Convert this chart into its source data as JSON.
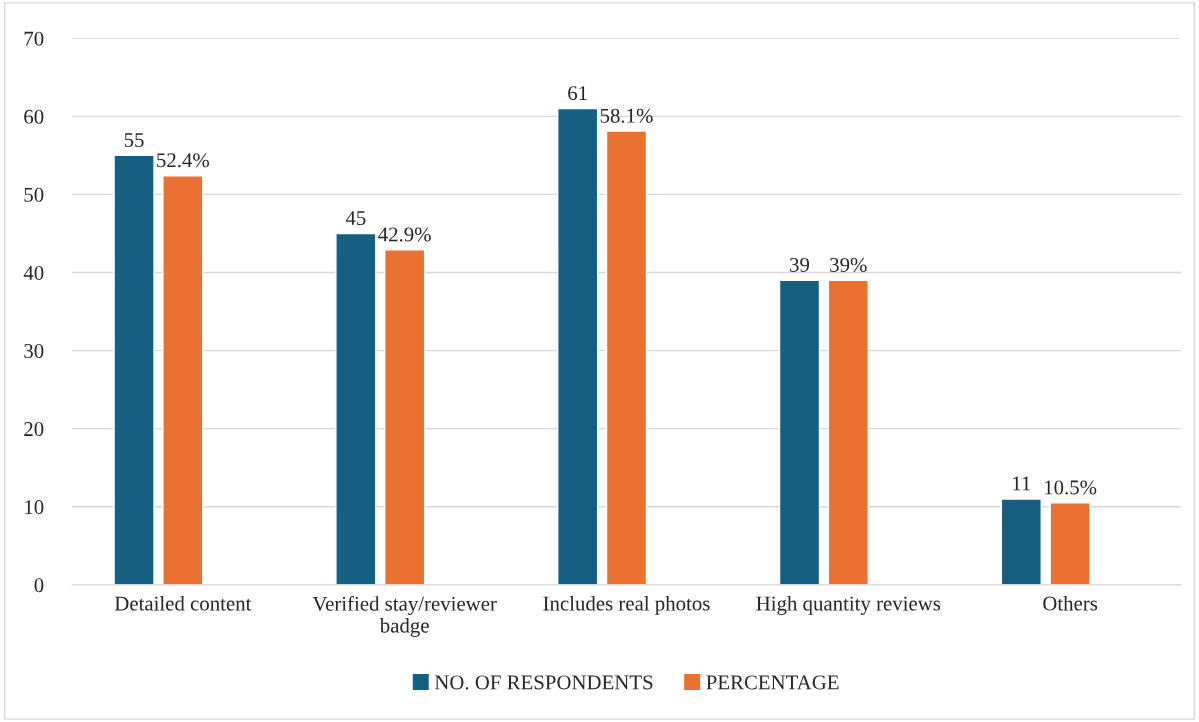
{
  "chart_data": {
    "type": "bar",
    "categories": [
      "Detailed content",
      "Verified stay/reviewer badge",
      "Includes real photos",
      "High quantity reviews",
      "Others"
    ],
    "series": [
      {
        "name": "NO. OF RESPONDENTS",
        "color": "#156082",
        "values": [
          55,
          45,
          61,
          39,
          11
        ],
        "value_labels": [
          "55",
          "45",
          "61",
          "39",
          "11"
        ]
      },
      {
        "name": "PERCENTAGE",
        "color": "#e97132",
        "values": [
          52.4,
          42.9,
          58.1,
          39,
          10.5
        ],
        "value_labels": [
          "52.4%",
          "42.9%",
          "58.1%",
          "39%",
          "10.5%"
        ]
      }
    ],
    "ylim": [
      0,
      70
    ],
    "yticks": [
      0,
      10,
      20,
      30,
      40,
      50,
      60,
      70
    ],
    "grid": "y",
    "legend": "bottom"
  }
}
